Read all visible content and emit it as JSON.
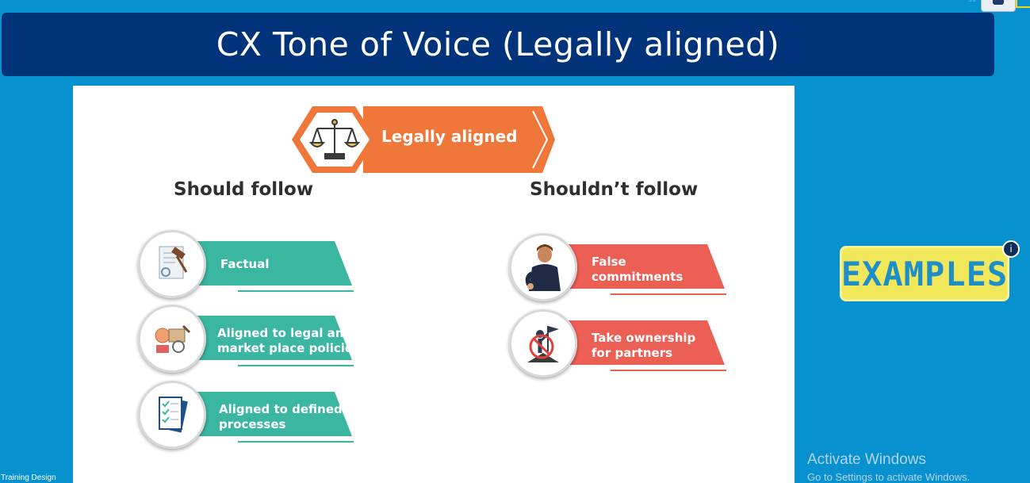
{
  "slide_title": "CX Tone of Voice (Legally aligned)",
  "banner": {
    "label": "Legally aligned",
    "icon": "scales-icon"
  },
  "columns": {
    "should": {
      "heading": "Should follow",
      "items": [
        {
          "line1": "Factual",
          "line2": "",
          "icon": "gavel-document-icon"
        },
        {
          "line1": "Aligned to legal and",
          "line2": "market place policies",
          "icon": "legal-items-icon"
        },
        {
          "line1": "Aligned to defined",
          "line2": "processes",
          "icon": "checklist-icon"
        }
      ]
    },
    "shouldnt": {
      "heading": "Shouldn’t follow",
      "items": [
        {
          "line1": "False",
          "line2": "commitments",
          "icon": "person-crossed-fingers-icon"
        },
        {
          "line1": "Take ownership",
          "line2": "for partners",
          "icon": "prohibited-person-flag-icon"
        }
      ]
    }
  },
  "examples_badge": {
    "label": "EXAMPLES",
    "info": "i"
  },
  "watermark": {
    "title": "Activate Windows",
    "subtitle": "Go to Settings to activate Windows."
  },
  "footer": "Training Design",
  "colors": {
    "teal": "#3bb6a0",
    "coral": "#ec5f55",
    "orange": "#f0773a",
    "navy": "#00337a",
    "background": "#0891cf"
  }
}
